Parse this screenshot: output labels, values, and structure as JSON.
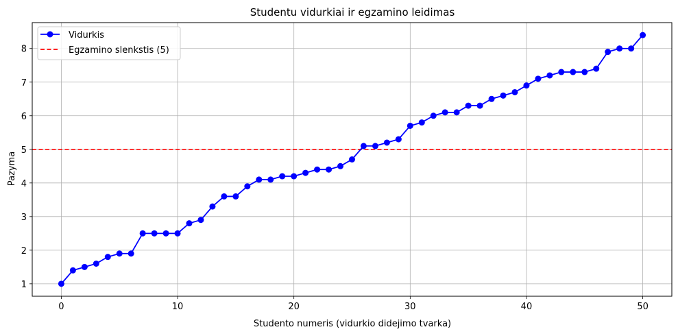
{
  "chart_data": {
    "type": "line",
    "title": "Studentu vidurkiai ir egzamino leidimas",
    "xlabel": "Studento numeris (vidurkio didejimo tvarka)",
    "ylabel": "Pazymа",
    "xlim": [
      -2.5,
      52.5
    ],
    "ylim": [
      0.63,
      8.77
    ],
    "xticks": [
      0,
      10,
      20,
      30,
      40,
      50
    ],
    "yticks": [
      1,
      2,
      3,
      4,
      5,
      6,
      7,
      8
    ],
    "grid": true,
    "legend_position": "top-left",
    "series": [
      {
        "name": "Vidurkis",
        "color": "#0000ff",
        "marker": "circle",
        "x": [
          0,
          1,
          2,
          3,
          4,
          5,
          6,
          7,
          8,
          9,
          10,
          11,
          12,
          13,
          14,
          15,
          16,
          17,
          18,
          19,
          20,
          21,
          22,
          23,
          24,
          25,
          26,
          27,
          28,
          29,
          30,
          31,
          32,
          33,
          34,
          35,
          36,
          37,
          38,
          39,
          40,
          41,
          42,
          43,
          44,
          45,
          46,
          47,
          48,
          49,
          50
        ],
        "values": [
          1.0,
          1.4,
          1.5,
          1.6,
          1.8,
          1.9,
          1.9,
          2.5,
          2.5,
          2.5,
          2.5,
          2.8,
          2.9,
          3.3,
          3.6,
          3.6,
          3.9,
          4.1,
          4.1,
          4.2,
          4.2,
          4.3,
          4.4,
          4.4,
          4.5,
          4.7,
          5.1,
          5.1,
          5.2,
          5.3,
          5.7,
          5.8,
          6.0,
          6.1,
          6.1,
          6.3,
          6.3,
          6.5,
          6.6,
          6.7,
          6.9,
          7.1,
          7.2,
          7.3,
          7.3,
          7.3,
          7.4,
          7.9,
          8.0,
          8.0,
          8.4
        ]
      }
    ],
    "threshold": {
      "name": "Egzamino slenkstis (5)",
      "value": 5,
      "color": "#ff0000",
      "style": "dashed"
    }
  }
}
